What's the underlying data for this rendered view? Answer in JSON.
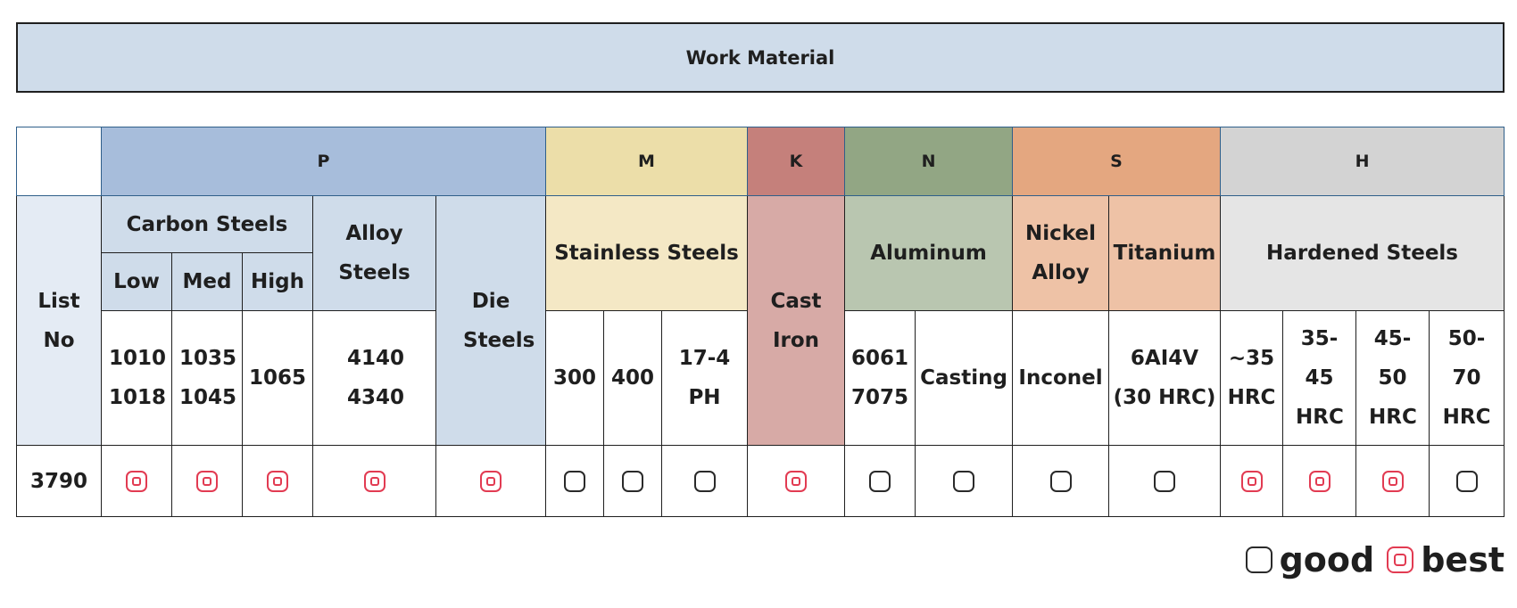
{
  "title": "Work Material",
  "groups": {
    "P": "P",
    "M": "M",
    "K": "K",
    "N": "N",
    "S": "S",
    "H": "H"
  },
  "families": {
    "list_no": "List No",
    "carbon_steels": "Carbon Steels",
    "alloy_steels": "Alloy Steels",
    "die_steels": "Die Steels",
    "stainless_steels": "Stainless Steels",
    "cast_iron": "Cast Iron",
    "aluminum": "Aluminum",
    "nickel_alloy": "Nickel Alloy",
    "titanium": "Titanium",
    "hardened_steels": "Hardened Steels"
  },
  "carbon_subs": [
    "Low",
    "Med",
    "High"
  ],
  "grades": {
    "low": "1010 1018",
    "med": "1035 1045",
    "high": "1065",
    "alloy": "4140 4340",
    "ss_300": "300",
    "ss_400": "400",
    "ss_174": "17-4 PH",
    "al_wrought": "6061 7075",
    "al_casting": "Casting",
    "inconel": "Inconel",
    "titanium": "6AI4V (30 HRC)",
    "h_35": "~35 HRC",
    "h_3545": "35-45 HRC",
    "h_4550": "45-50 HRC",
    "h_5070": "50-70 HRC"
  },
  "row": {
    "list_no": "3790",
    "ratings": [
      "best",
      "best",
      "best",
      "best",
      "best",
      "good",
      "good",
      "good",
      "best",
      "good",
      "good",
      "good",
      "good",
      "best",
      "best",
      "best",
      "good"
    ]
  },
  "legend": {
    "good": "good",
    "best": "best"
  },
  "colors": {
    "best": "#e23b52",
    "good": "#2a2a2a",
    "P": "#a7bddb",
    "M": "#ecdea9",
    "K": "#c5807b",
    "N": "#92a684",
    "S": "#e4a780",
    "H": "#d3d3d3"
  }
}
